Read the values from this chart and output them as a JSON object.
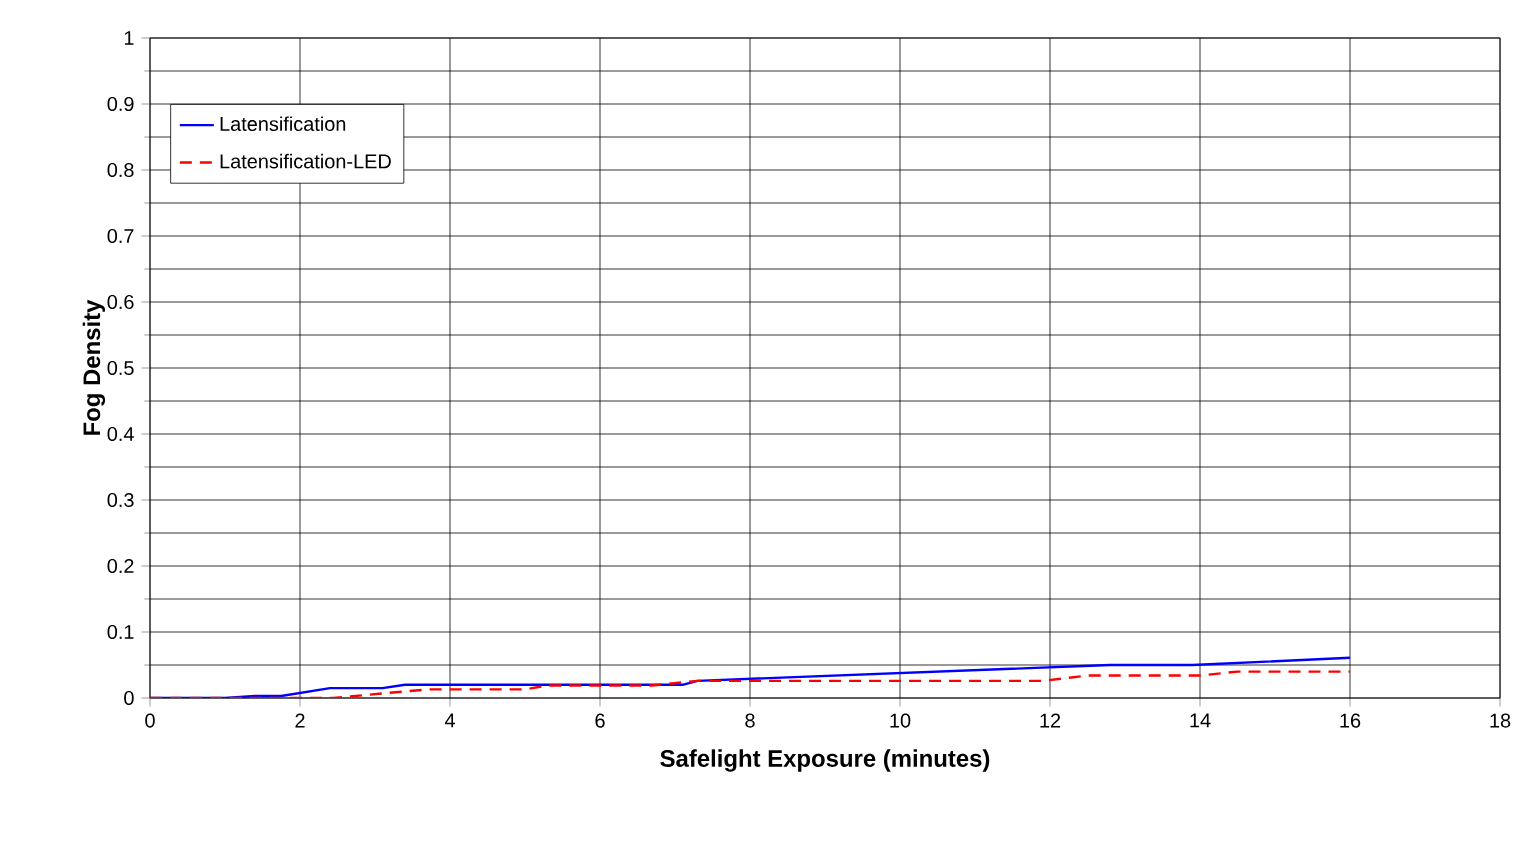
{
  "chart_data": {
    "type": "line",
    "xlabel": "Safelight Exposure (minutes)",
    "ylabel": "Fog Density",
    "xlim": [
      0,
      18
    ],
    "xticks": [
      0,
      2,
      4,
      6,
      8,
      10,
      12,
      14,
      16,
      18
    ],
    "ylim": [
      0,
      1
    ],
    "yticks": [
      0,
      0.1,
      0.2,
      0.3,
      0.4,
      0.5,
      0.6,
      0.7,
      0.8,
      0.9,
      1
    ],
    "grid": true,
    "legend": "top left",
    "marker": "none",
    "series": [
      {
        "name": "Latensification",
        "color": "#0000ff",
        "line_style": "solid",
        "x": [
          0,
          1,
          1.4,
          1.75,
          2.4,
          3.1,
          3.4,
          7.1,
          7.3,
          12.8,
          13.9,
          16
        ],
        "values": [
          0,
          0,
          0.003,
          0.003,
          0.015,
          0.015,
          0.02,
          0.02,
          0.026,
          0.05,
          0.05,
          0.061
        ]
      },
      {
        "name": "Latensification-LED",
        "color": "#ff0000",
        "line_style": "dashed",
        "x": [
          0,
          2.45,
          3.1,
          3.7,
          5.0,
          5.3,
          6.7,
          7.3,
          11.9,
          12.5,
          14,
          14.5,
          16
        ],
        "values": [
          0,
          0,
          0.007,
          0.013,
          0.013,
          0.019,
          0.019,
          0.026,
          0.026,
          0.034,
          0.034,
          0.04,
          0.04
        ]
      }
    ]
  }
}
